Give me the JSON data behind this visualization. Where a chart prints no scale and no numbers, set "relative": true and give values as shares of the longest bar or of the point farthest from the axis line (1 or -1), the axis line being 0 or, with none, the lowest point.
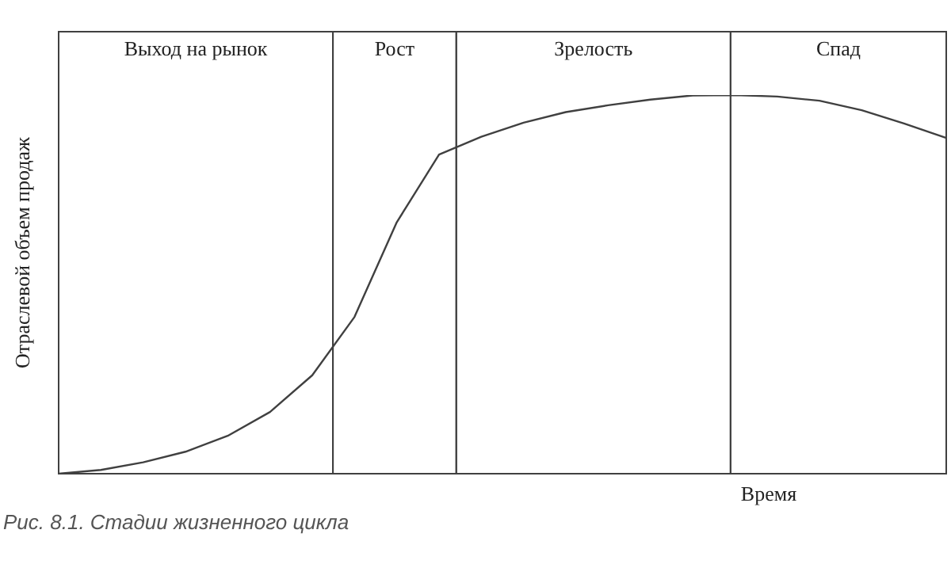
{
  "chart_data": {
    "type": "line",
    "relative": true,
    "xlabel": "Время",
    "ylabel": "Отраслевой объем продаж",
    "tick_labels": false,
    "legend": false,
    "marker": "none",
    "line_style": "solid",
    "categories": [
      null,
      null,
      null,
      null,
      null,
      null,
      null,
      null,
      null,
      null,
      null,
      null,
      null,
      null,
      null,
      null,
      null,
      null,
      null,
      null,
      null,
      null
    ],
    "series": [
      {
        "color": "#404040",
        "values": [
          0,
          0.01,
          0.03,
          0.058,
          0.1,
          0.163,
          0.26,
          0.414,
          0.664,
          0.843,
          0.89,
          0.927,
          0.955,
          0.973,
          0.988,
          0.999,
          1,
          0.996,
          0.985,
          0.96,
          0.925,
          0.887
        ]
      }
    ],
    "annotations": [
      "Выход на рынок",
      "Рост",
      "Зрелость",
      "Спад",
      "Рис. 8.1. Стадии жизненного цикла"
    ]
  }
}
